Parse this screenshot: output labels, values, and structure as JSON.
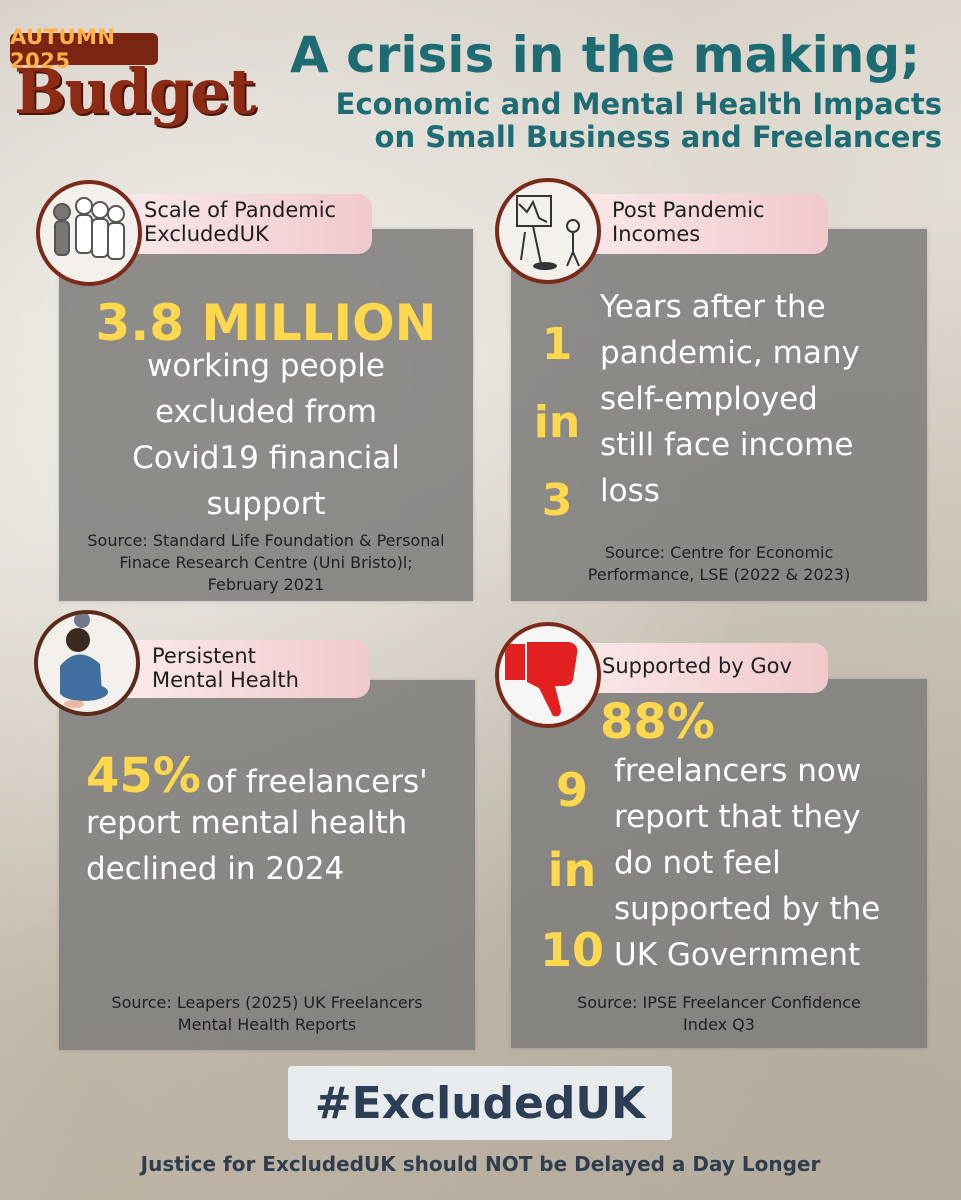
{
  "logo": {
    "tag": "AUTUMN 2025",
    "word": "Budget"
  },
  "header": {
    "title": "A crisis in the making;",
    "subtitle_line1": "Economic and Mental Health Impacts",
    "subtitle_line2": "on Small Business and Freelancers"
  },
  "card1": {
    "tag_line1": "Scale of Pandemic",
    "tag_line2": "ExcludedUK",
    "highlight": "3.8 MILLION",
    "body": [
      "working people",
      "excluded from",
      "Covid19 financial",
      "support"
    ],
    "source": [
      "Source: Standard Life Foundation & Personal",
      "Finace Research Centre (Uni Bristo)l;",
      "February 2021"
    ]
  },
  "card2": {
    "tag_line1": "Post Pandemic",
    "tag_line2": "Incomes",
    "ratio": [
      "1",
      "in",
      "3"
    ],
    "body": [
      "Years after the",
      "pandemic, many",
      "self-employed",
      "still face income",
      "loss"
    ],
    "source": [
      "Source: Centre for Economic",
      "Performance, LSE (2022 & 2023)"
    ]
  },
  "card3": {
    "tag_line1": "Persistent",
    "tag_line2": "Mental Health",
    "highlight": "45%",
    "body_first": "of freelancers'",
    "body": [
      "report mental health",
      "declined in 2024"
    ],
    "source": [
      "Source: Leapers (2025) UK Freelancers",
      "Mental Health Reports"
    ]
  },
  "card4": {
    "tag": "Supported by Gov",
    "highlight": "88%",
    "ratio": [
      "9",
      "in",
      "10"
    ],
    "body": [
      "freelancers now",
      "report that they",
      "do not feel",
      "supported by the",
      "UK Government"
    ],
    "source": [
      "Source: IPSE Freelancer Confidence",
      "Index Q3"
    ]
  },
  "hashtag": "#ExcludedUK",
  "footer": "Justice for ExcludedUK should NOT be Delayed a Day Longer",
  "colors": {
    "teal": "#1d6b73",
    "yellow": "#ffd84d",
    "brand": "#8c2a14",
    "panel": "#807e7c"
  }
}
